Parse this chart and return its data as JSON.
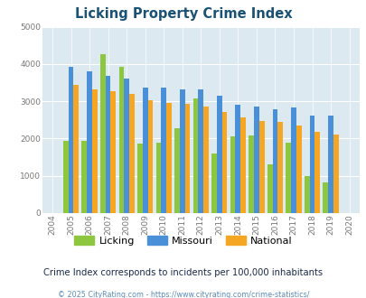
{
  "title": "Licking Property Crime Index",
  "years": [
    2004,
    2005,
    2006,
    2007,
    2008,
    2009,
    2010,
    2011,
    2012,
    2013,
    2014,
    2015,
    2016,
    2017,
    2018,
    2019,
    2020
  ],
  "licking": [
    null,
    1950,
    1930,
    4270,
    3930,
    1870,
    1880,
    2270,
    3080,
    1610,
    2060,
    2090,
    1320,
    1880,
    1000,
    830,
    null
  ],
  "missouri": [
    null,
    3930,
    3810,
    3680,
    3620,
    3370,
    3360,
    3310,
    3310,
    3140,
    2920,
    2870,
    2790,
    2830,
    2610,
    2610,
    null
  ],
  "national": [
    null,
    3430,
    3330,
    3260,
    3200,
    3030,
    2950,
    2940,
    2870,
    2720,
    2580,
    2480,
    2450,
    2340,
    2190,
    2120,
    null
  ],
  "licking_color": "#8dc63f",
  "missouri_color": "#4a90d9",
  "national_color": "#f5a623",
  "bg_color": "#dce9f0",
  "ylim": [
    0,
    5000
  ],
  "yticks": [
    0,
    1000,
    2000,
    3000,
    4000,
    5000
  ],
  "subtitle": "Crime Index corresponds to incidents per 100,000 inhabitants",
  "footer": "© 2025 CityRating.com - https://www.cityrating.com/crime-statistics/",
  "title_color": "#1a5276",
  "subtitle_color": "#1a2a4a",
  "footer_color": "#5b8ab8",
  "bar_width": 0.28
}
